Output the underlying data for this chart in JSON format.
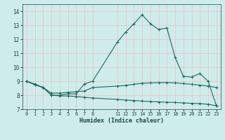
{
  "xlabel": "Humidex (Indice chaleur)",
  "bg_color": "#ceecea",
  "grid_color": "#e8c8c8",
  "line_color": "#1a6b60",
  "xlim": [
    -0.5,
    23.5
  ],
  "ylim": [
    7,
    14.5
  ],
  "xticks": [
    0,
    1,
    2,
    3,
    4,
    5,
    6,
    7,
    8,
    11,
    12,
    13,
    14,
    15,
    16,
    17,
    18,
    19,
    20,
    21,
    22,
    23
  ],
  "yticks": [
    7,
    8,
    9,
    10,
    11,
    12,
    13,
    14
  ],
  "line1_x": [
    0,
    1,
    2,
    3,
    4,
    5,
    6,
    7,
    8,
    11,
    12,
    13,
    14,
    15,
    16,
    17,
    18,
    19,
    20,
    21,
    22,
    23
  ],
  "line1_y": [
    9.0,
    8.8,
    8.55,
    8.0,
    8.0,
    8.1,
    8.1,
    8.8,
    9.0,
    11.8,
    12.5,
    13.1,
    13.75,
    13.1,
    12.7,
    12.8,
    10.7,
    9.35,
    9.3,
    9.55,
    9.0,
    7.25
  ],
  "line2_x": [
    0,
    1,
    2,
    3,
    4,
    5,
    6,
    7,
    8,
    11,
    12,
    13,
    14,
    15,
    16,
    17,
    18,
    19,
    20,
    21,
    22,
    23
  ],
  "line2_y": [
    9.0,
    8.75,
    8.55,
    8.15,
    8.15,
    8.2,
    8.25,
    8.3,
    8.55,
    8.65,
    8.7,
    8.78,
    8.85,
    8.88,
    8.9,
    8.9,
    8.88,
    8.83,
    8.78,
    8.72,
    8.65,
    8.55
  ],
  "line3_x": [
    0,
    1,
    2,
    3,
    4,
    5,
    6,
    7,
    8,
    11,
    12,
    13,
    14,
    15,
    16,
    17,
    18,
    19,
    20,
    21,
    22,
    23
  ],
  "line3_y": [
    9.0,
    8.75,
    8.55,
    8.0,
    7.95,
    7.95,
    7.9,
    7.85,
    7.8,
    7.7,
    7.65,
    7.62,
    7.58,
    7.55,
    7.52,
    7.5,
    7.48,
    7.45,
    7.42,
    7.4,
    7.35,
    7.25
  ]
}
